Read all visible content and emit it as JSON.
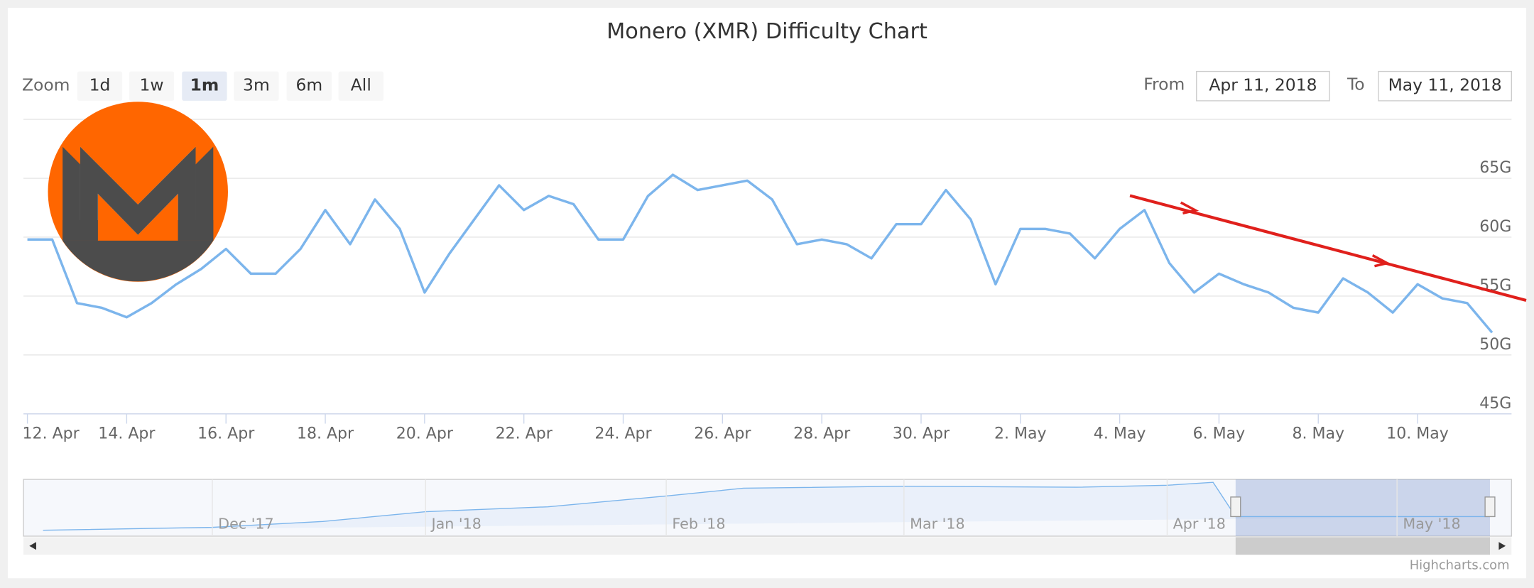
{
  "chart_data": {
    "type": "line",
    "title": "Monero (XMR) Difficulty Chart",
    "categories": [
      "12. Apr",
      null,
      null,
      null,
      "14. Apr",
      null,
      null,
      null,
      "16. Apr",
      null,
      null,
      null,
      "18. Apr",
      null,
      null,
      null,
      "20. Apr",
      null,
      null,
      null,
      "22. Apr",
      null,
      null,
      null,
      "24. Apr",
      null,
      null,
      null,
      "26. Apr",
      null,
      null,
      null,
      "28. Apr",
      null,
      null,
      null,
      "30. Apr",
      null,
      null,
      null,
      "2. May",
      null,
      null,
      null,
      "4. May",
      null,
      null,
      null,
      "6. May",
      null,
      null,
      null,
      "8. May",
      null,
      null,
      null,
      "10. May",
      null,
      null,
      null
    ],
    "values": [
      59.8,
      59.8,
      54.4,
      54,
      53.2,
      54.4,
      56,
      57.3,
      59,
      56.9,
      56.9,
      59,
      62.3,
      59.4,
      63.2,
      60.7,
      55.3,
      58.6,
      61.5,
      64.4,
      62.3,
      63.5,
      62.8,
      59.8,
      59.8,
      63.5,
      65.3,
      64,
      64.4,
      64.8,
      63.2,
      59.4,
      59.8,
      59.4,
      58.2,
      61.1,
      61.1,
      64,
      61.5,
      56,
      60.7,
      60.7,
      60.3,
      58.2,
      60.7,
      62.3,
      57.8,
      55.3,
      56.9,
      56,
      55.3,
      54,
      53.6,
      56.5,
      55.3,
      53.6,
      56,
      54.8,
      54.4,
      51.9
    ],
    "color": "#7cb5ec",
    "ylim": [
      45,
      70
    ],
    "yticks": [
      {
        "value": 45,
        "label": "45G"
      },
      {
        "value": 50,
        "label": "50G"
      },
      {
        "value": 55,
        "label": "55G"
      },
      {
        "value": 60,
        "label": "60G"
      },
      {
        "value": 65,
        "label": "65G"
      }
    ],
    "grid": true
  },
  "ui": {
    "zoom_label": "Zoom",
    "zoom_buttons": [
      "1d",
      "1w",
      "1m",
      "3m",
      "6m",
      "All"
    ],
    "from_label": "From",
    "from_value": "Apr 11, 2018",
    "to_label": "To",
    "to_value": "May 11, 2018",
    "navigator_labels": [
      "Dec '17",
      "Jan '18",
      "Feb '18",
      "Mar '18",
      "Apr '18",
      "May '18"
    ],
    "credit": "Highcharts.com"
  }
}
